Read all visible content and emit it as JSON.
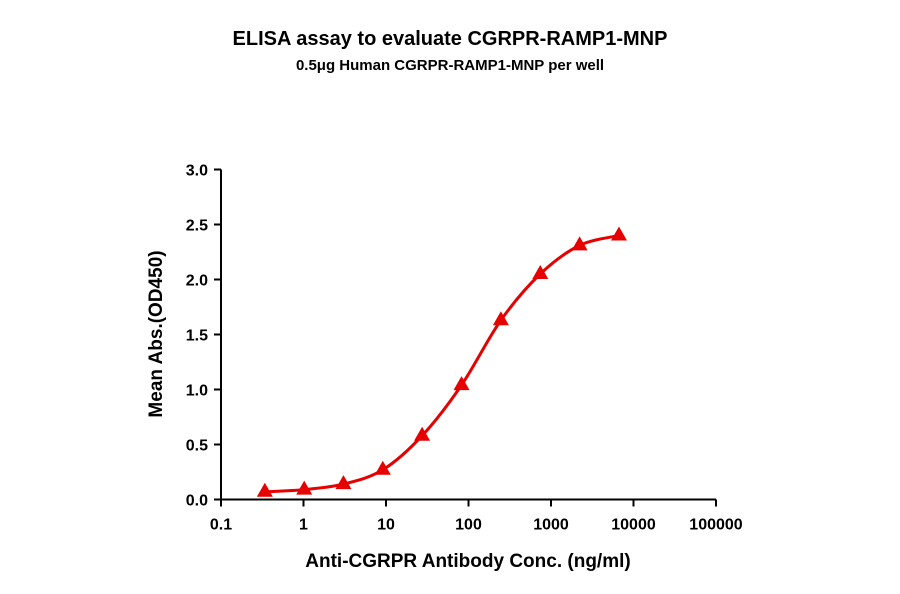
{
  "chart_data": {
    "type": "line",
    "title": "ELISA assay to evaluate CGRPR-RAMP1-MNP",
    "subtitle": "0.5μg Human CGRPR-RAMP1-MNP per well",
    "xlabel": "Anti-CGRPR Antibody Conc. (ng/ml)",
    "ylabel": "Mean Abs.(OD450)",
    "xscale": "log",
    "xlim": [
      0.1,
      100000
    ],
    "ylim": [
      0,
      3.0
    ],
    "xticks": [
      "0.1",
      "1",
      "10",
      "100",
      "1000",
      "10000",
      "100000"
    ],
    "yticks": [
      "0.0",
      "0.5",
      "1.0",
      "1.5",
      "2.0",
      "2.5",
      "3.0"
    ],
    "grid": false,
    "marker": "triangle",
    "color": "#e60000",
    "series": [
      {
        "x": [
          0.34,
          1.02,
          3.05,
          9.14,
          27.4,
          82.3,
          247,
          741,
          2222,
          6667
        ],
        "y": [
          0.07,
          0.09,
          0.14,
          0.27,
          0.58,
          1.04,
          1.63,
          2.05,
          2.31,
          2.4
        ]
      }
    ]
  }
}
